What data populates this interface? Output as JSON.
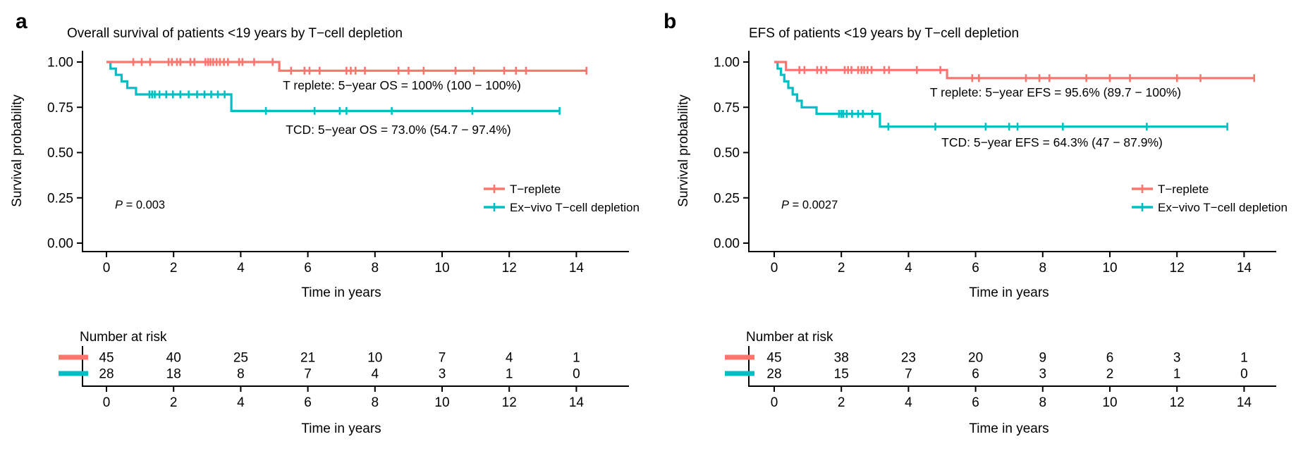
{
  "chart_data": [
    {
      "type": "line",
      "subtype": "kaplan-meier",
      "panel_label": "a",
      "title": "Overall survival of patients <19 years by T−cell depletion",
      "xlabel": "Time in years",
      "ylabel": "Survival probability",
      "x_ticks": [
        0,
        2,
        4,
        6,
        8,
        10,
        12,
        14
      ],
      "y_ticks": [
        0.0,
        0.25,
        0.5,
        0.75,
        1.0
      ],
      "ylim": [
        0,
        1
      ],
      "xlim": [
        0,
        15.5
      ],
      "grid": "off",
      "legend_position": "right-middle",
      "p_value": {
        "symbol": "P",
        "rest": " = 0.003"
      },
      "annotations": [
        {
          "text": "T replete: 5−year OS = 100% (100 − 100%)",
          "color": "#ff1a14"
        },
        {
          "text": "TCD: 5−year OS = 73.0% (54.7 − 97.4%)",
          "color": "#00bfc4"
        }
      ],
      "legend": [
        {
          "label": "T−replete",
          "color": "#f8766d"
        },
        {
          "label": "Ex−vivo T−cell depletion",
          "color": "#00bfc4"
        }
      ],
      "series": [
        {
          "name": "T-replete",
          "color": "#f8766d",
          "points": [
            [
              0,
              1
            ],
            [
              5.15,
              1
            ],
            [
              5.15,
              0.952
            ],
            [
              14.3,
              0.952
            ]
          ],
          "censors": [
            [
              0.8,
              1
            ],
            [
              1.05,
              1
            ],
            [
              1.3,
              1
            ],
            [
              1.85,
              1
            ],
            [
              1.95,
              1
            ],
            [
              2.1,
              1
            ],
            [
              2.2,
              1
            ],
            [
              2.5,
              1
            ],
            [
              2.62,
              1
            ],
            [
              2.95,
              1
            ],
            [
              3.03,
              1
            ],
            [
              3.1,
              1
            ],
            [
              3.18,
              1
            ],
            [
              3.28,
              1
            ],
            [
              3.38,
              1
            ],
            [
              3.5,
              1
            ],
            [
              3.62,
              1
            ],
            [
              3.95,
              1
            ],
            [
              4.05,
              1
            ],
            [
              4.4,
              1
            ],
            [
              4.95,
              1
            ],
            [
              5.5,
              0.952
            ],
            [
              5.9,
              0.952
            ],
            [
              6.05,
              0.952
            ],
            [
              6.35,
              0.952
            ],
            [
              7.15,
              0.952
            ],
            [
              7.28,
              0.952
            ],
            [
              7.42,
              0.952
            ],
            [
              7.7,
              0.952
            ],
            [
              8.7,
              0.952
            ],
            [
              9.0,
              0.952
            ],
            [
              9.45,
              0.952
            ],
            [
              10.4,
              0.952
            ],
            [
              10.95,
              0.952
            ],
            [
              11.85,
              0.952
            ],
            [
              12.2,
              0.952
            ],
            [
              12.5,
              0.952
            ],
            [
              14.3,
              0.952
            ]
          ]
        },
        {
          "name": "Ex-vivo T-cell depletion",
          "color": "#00bfc4",
          "points": [
            [
              0,
              1
            ],
            [
              0.12,
              1
            ],
            [
              0.12,
              0.964
            ],
            [
              0.28,
              0.964
            ],
            [
              0.28,
              0.929
            ],
            [
              0.45,
              0.929
            ],
            [
              0.45,
              0.893
            ],
            [
              0.62,
              0.893
            ],
            [
              0.62,
              0.857
            ],
            [
              0.88,
              0.857
            ],
            [
              0.88,
              0.821
            ],
            [
              3.72,
              0.821
            ],
            [
              3.72,
              0.73
            ],
            [
              13.5,
              0.73
            ]
          ],
          "censors": [
            [
              1.28,
              0.821
            ],
            [
              1.36,
              0.821
            ],
            [
              1.44,
              0.821
            ],
            [
              1.58,
              0.821
            ],
            [
              1.78,
              0.821
            ],
            [
              1.98,
              0.821
            ],
            [
              2.2,
              0.821
            ],
            [
              2.45,
              0.821
            ],
            [
              2.7,
              0.821
            ],
            [
              2.92,
              0.821
            ],
            [
              3.12,
              0.821
            ],
            [
              3.32,
              0.821
            ],
            [
              3.52,
              0.821
            ],
            [
              4.75,
              0.73
            ],
            [
              6.2,
              0.73
            ],
            [
              6.95,
              0.73
            ],
            [
              7.15,
              0.73
            ],
            [
              8.5,
              0.73
            ],
            [
              10.9,
              0.73
            ],
            [
              13.5,
              0.73
            ]
          ]
        }
      ],
      "risk_table": {
        "header": "Number at risk",
        "xlabel": "Time in years",
        "times": [
          0,
          2,
          4,
          6,
          8,
          10,
          12,
          14
        ],
        "rows": [
          {
            "name": "T-replete",
            "color": "#f8766d",
            "counts": [
              45,
              40,
              25,
              21,
              10,
              7,
              4,
              1
            ]
          },
          {
            "name": "Ex-vivo T-cell depletion",
            "color": "#00bfc4",
            "counts": [
              28,
              18,
              8,
              7,
              4,
              3,
              1,
              0
            ]
          }
        ]
      }
    },
    {
      "type": "line",
      "subtype": "kaplan-meier",
      "panel_label": "b",
      "title": "EFS of patients <19 years by T−cell depletion",
      "xlabel": "Time in years",
      "ylabel": "Survival probability",
      "x_ticks": [
        0,
        2,
        4,
        6,
        8,
        10,
        12,
        14
      ],
      "y_ticks": [
        0.0,
        0.25,
        0.5,
        0.75,
        1.0
      ],
      "ylim": [
        0,
        1
      ],
      "xlim": [
        0,
        15.5
      ],
      "grid": "off",
      "legend_position": "right-middle",
      "p_value": {
        "symbol": "P",
        "rest": " = 0.0027"
      },
      "annotations": [
        {
          "text": "T replete: 5−year EFS = 95.6% (89.7 − 100%)",
          "color": "#ff1a14"
        },
        {
          "text": "TCD: 5−year EFS = 64.3% (47 − 87.9%)",
          "color": "#00bfc4"
        }
      ],
      "legend": [
        {
          "label": "T−replete",
          "color": "#f8766d"
        },
        {
          "label": "Ex−vivo T−cell depletion",
          "color": "#00bfc4"
        }
      ],
      "series": [
        {
          "name": "T-replete",
          "color": "#f8766d",
          "points": [
            [
              0,
              1
            ],
            [
              0.35,
              1
            ],
            [
              0.35,
              0.956
            ],
            [
              5.15,
              0.956
            ],
            [
              5.15,
              0.911
            ],
            [
              14.3,
              0.911
            ]
          ],
          "censors": [
            [
              0.75,
              0.956
            ],
            [
              0.9,
              0.956
            ],
            [
              1.28,
              0.956
            ],
            [
              1.4,
              0.956
            ],
            [
              1.55,
              0.956
            ],
            [
              2.1,
              0.956
            ],
            [
              2.2,
              0.956
            ],
            [
              2.3,
              0.956
            ],
            [
              2.5,
              0.956
            ],
            [
              2.6,
              0.956
            ],
            [
              2.68,
              0.956
            ],
            [
              2.78,
              0.956
            ],
            [
              2.9,
              0.956
            ],
            [
              3.28,
              0.956
            ],
            [
              3.42,
              0.956
            ],
            [
              4.25,
              0.956
            ],
            [
              4.95,
              0.956
            ],
            [
              5.9,
              0.911
            ],
            [
              6.1,
              0.911
            ],
            [
              7.5,
              0.911
            ],
            [
              7.9,
              0.911
            ],
            [
              8.2,
              0.911
            ],
            [
              9.3,
              0.911
            ],
            [
              10.0,
              0.911
            ],
            [
              10.6,
              0.911
            ],
            [
              12.0,
              0.911
            ],
            [
              12.7,
              0.911
            ],
            [
              14.3,
              0.911
            ]
          ]
        },
        {
          "name": "Ex-vivo T-cell depletion",
          "color": "#00bfc4",
          "points": [
            [
              0,
              1
            ],
            [
              0.1,
              1
            ],
            [
              0.1,
              0.964
            ],
            [
              0.2,
              0.964
            ],
            [
              0.2,
              0.929
            ],
            [
              0.3,
              0.929
            ],
            [
              0.3,
              0.893
            ],
            [
              0.42,
              0.893
            ],
            [
              0.42,
              0.857
            ],
            [
              0.55,
              0.857
            ],
            [
              0.55,
              0.821
            ],
            [
              0.68,
              0.821
            ],
            [
              0.68,
              0.786
            ],
            [
              0.82,
              0.786
            ],
            [
              0.82,
              0.75
            ],
            [
              1.26,
              0.75
            ],
            [
              1.26,
              0.714
            ],
            [
              3.15,
              0.714
            ],
            [
              3.15,
              0.643
            ],
            [
              13.5,
              0.643
            ]
          ],
          "censors": [
            [
              1.93,
              0.714
            ],
            [
              2.0,
              0.714
            ],
            [
              2.06,
              0.714
            ],
            [
              2.16,
              0.714
            ],
            [
              2.32,
              0.714
            ],
            [
              2.5,
              0.714
            ],
            [
              2.64,
              0.714
            ],
            [
              2.92,
              0.714
            ],
            [
              3.4,
              0.643
            ],
            [
              4.8,
              0.643
            ],
            [
              6.3,
              0.643
            ],
            [
              7.0,
              0.643
            ],
            [
              7.25,
              0.643
            ],
            [
              8.6,
              0.643
            ],
            [
              11.1,
              0.643
            ],
            [
              13.5,
              0.643
            ]
          ]
        }
      ],
      "risk_table": {
        "header": "Number at risk",
        "xlabel": "Time in years",
        "times": [
          0,
          2,
          4,
          6,
          8,
          10,
          12,
          14
        ],
        "rows": [
          {
            "name": "T-replete",
            "color": "#f8766d",
            "counts": [
              45,
              38,
              23,
              20,
              9,
              6,
              3,
              1
            ]
          },
          {
            "name": "Ex-vivo T-cell depletion",
            "color": "#00bfc4",
            "counts": [
              28,
              15,
              7,
              6,
              3,
              2,
              1,
              0
            ]
          }
        ]
      }
    }
  ]
}
